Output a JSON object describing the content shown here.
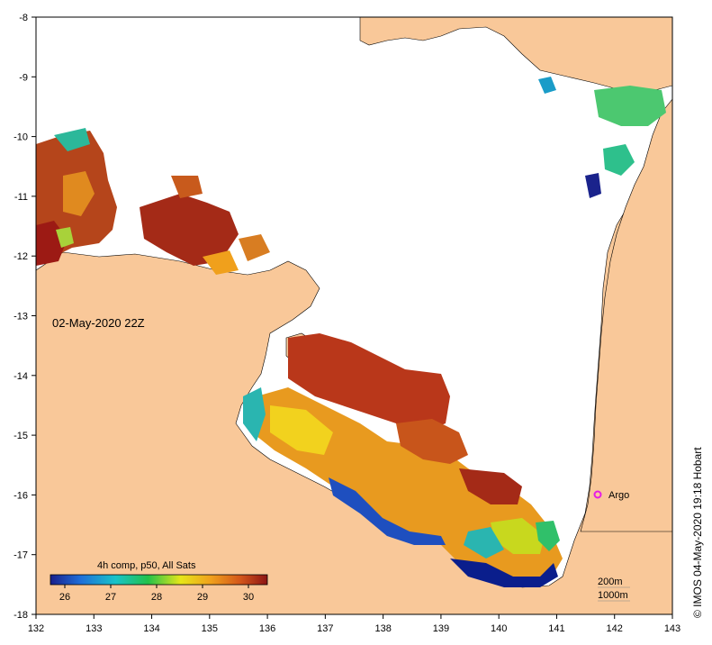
{
  "map": {
    "date_label": "02-May-2020 22Z",
    "x_ticks": [
      "132",
      "133",
      "134",
      "135",
      "136",
      "137",
      "138",
      "139",
      "140",
      "141",
      "142",
      "143"
    ],
    "y_ticks": [
      "-8",
      "-9",
      "-10",
      "-11",
      "-12",
      "-13",
      "-14",
      "-15",
      "-16",
      "-17",
      "-18"
    ],
    "argo_label": "Argo",
    "contour_labels": [
      "200m",
      "1000m"
    ],
    "colors": {
      "land": "#f9c899",
      "argo": "#e61ce6",
      "ocean": "#ffffff"
    }
  },
  "legend": {
    "title": "4h comp, p50, All Sats",
    "ticks": [
      "26",
      "27",
      "28",
      "29",
      "30"
    ],
    "gradient": [
      "#1a1f8c",
      "#1f6fd9",
      "#19c3c9",
      "#23c24a",
      "#e6e619",
      "#f0a01c",
      "#d2541a",
      "#8c1414"
    ]
  },
  "credit": "© IMOS 04-May-2020 19:18 Hobart"
}
